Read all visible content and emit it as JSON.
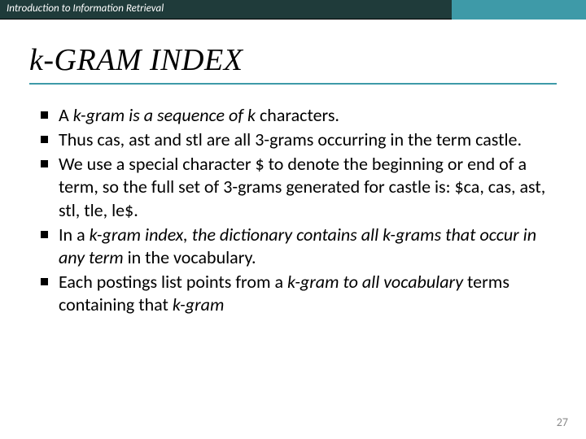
{
  "header": {
    "text": "Introduction to Information Retrieval"
  },
  "title": "k-GRAM INDEX",
  "bullets": [
    {
      "pre": "A ",
      "ital": "k-gram is a sequence of k",
      "post": " characters."
    },
    {
      "pre": " Thus cas, ast and stl are all 3-grams occurring in the term castle.",
      "ital": "",
      "post": ""
    },
    {
      "pre": "We use a special character $ to denote the beginning or end of a term, so the full set of 3-grams generated for castle is: $ca, cas, ast, stl, tle, le$.",
      "ital": "",
      "post": ""
    },
    {
      "pre": "In a ",
      "ital": "k-gram index, the dictionary contains all k-grams that occur in any term",
      "post": " in the vocabulary."
    },
    {
      "pre": " Each postings list points from a ",
      "ital": "k-gram to all vocabulary",
      "post": " terms containing that ",
      "ital2": "k-gram"
    }
  ],
  "pageNumber": "27",
  "colors": {
    "header_dark": "#1f3b3a",
    "header_teal": "#3e9aa8"
  }
}
